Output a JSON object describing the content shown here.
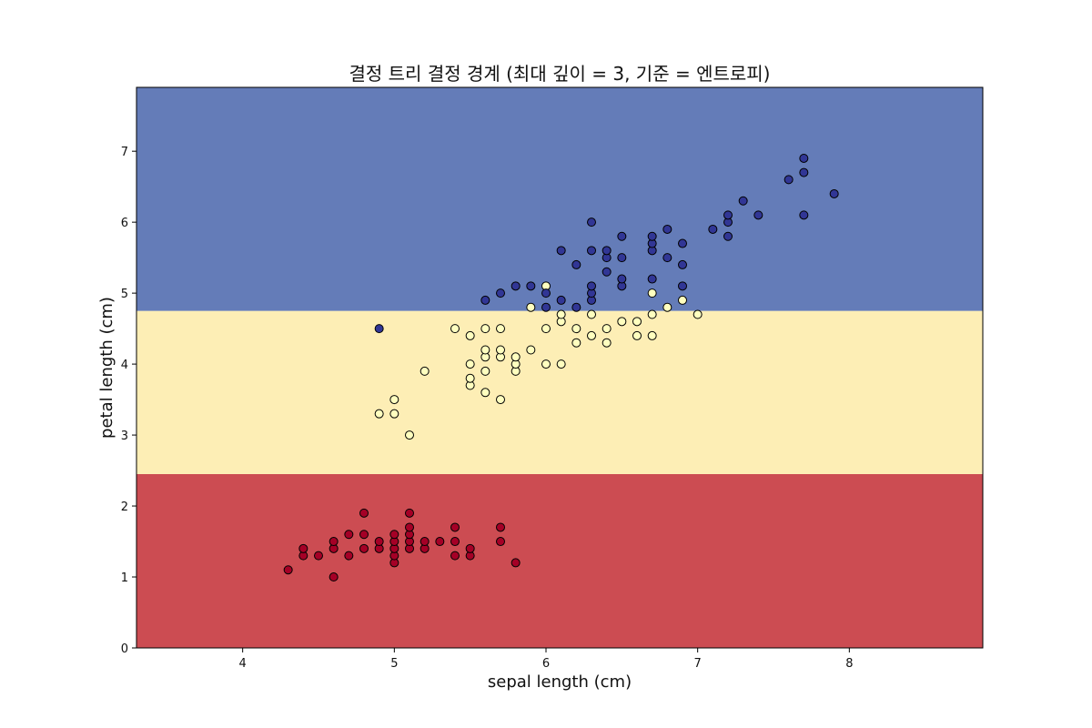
{
  "chart_data": {
    "type": "scatter",
    "title": "결정 트리 결정 경계 (최대 깊이 = 3, 기준 = 엔트로피)",
    "xlabel": "sepal length (cm)",
    "ylabel": "petal length (cm)",
    "xlim": [
      3.3,
      8.88
    ],
    "ylim": [
      0,
      7.9
    ],
    "xticks": [
      "4",
      "5",
      "6",
      "7",
      "8"
    ],
    "yticks": [
      "0",
      "1",
      "2",
      "3",
      "4",
      "5",
      "6",
      "7"
    ],
    "grid": false,
    "regions": [
      {
        "y_from": 0,
        "y_to": 2.45,
        "color": "#cc4c52"
      },
      {
        "y_from": 2.45,
        "y_to": 4.75,
        "color": "#fdeeb5"
      },
      {
        "y_from": 4.75,
        "y_to": 7.9,
        "color": "#647cb8"
      }
    ],
    "point_colors": [
      "#a50026",
      "#ffffbf",
      "#313695"
    ],
    "series": [
      {
        "color": "#a50026",
        "points": [
          [
            4.3,
            1.1
          ],
          [
            4.4,
            1.3
          ],
          [
            4.4,
            1.4
          ],
          [
            4.5,
            1.3
          ],
          [
            4.6,
            1.0
          ],
          [
            4.6,
            1.4
          ],
          [
            4.6,
            1.5
          ],
          [
            4.7,
            1.3
          ],
          [
            4.7,
            1.6
          ],
          [
            4.8,
            1.4
          ],
          [
            4.8,
            1.6
          ],
          [
            4.8,
            1.9
          ],
          [
            4.9,
            1.4
          ],
          [
            4.9,
            1.5
          ],
          [
            5.0,
            1.2
          ],
          [
            5.0,
            1.3
          ],
          [
            5.0,
            1.4
          ],
          [
            5.0,
            1.5
          ],
          [
            5.0,
            1.6
          ],
          [
            5.1,
            1.4
          ],
          [
            5.1,
            1.5
          ],
          [
            5.1,
            1.6
          ],
          [
            5.1,
            1.7
          ],
          [
            5.1,
            1.9
          ],
          [
            5.2,
            1.4
          ],
          [
            5.2,
            1.5
          ],
          [
            5.3,
            1.5
          ],
          [
            5.4,
            1.3
          ],
          [
            5.4,
            1.5
          ],
          [
            5.4,
            1.7
          ],
          [
            5.5,
            1.3
          ],
          [
            5.5,
            1.4
          ],
          [
            5.7,
            1.5
          ],
          [
            5.7,
            1.7
          ],
          [
            5.8,
            1.2
          ]
        ]
      },
      {
        "color": "#ffffbf",
        "points": [
          [
            4.9,
            3.3
          ],
          [
            5.0,
            3.3
          ],
          [
            5.0,
            3.5
          ],
          [
            5.1,
            3.0
          ],
          [
            5.2,
            3.9
          ],
          [
            5.4,
            4.5
          ],
          [
            5.5,
            3.7
          ],
          [
            5.5,
            3.8
          ],
          [
            5.5,
            4.0
          ],
          [
            5.5,
            4.4
          ],
          [
            5.6,
            3.6
          ],
          [
            5.6,
            3.9
          ],
          [
            5.6,
            4.1
          ],
          [
            5.6,
            4.2
          ],
          [
            5.6,
            4.5
          ],
          [
            5.7,
            3.5
          ],
          [
            5.7,
            4.1
          ],
          [
            5.7,
            4.2
          ],
          [
            5.7,
            4.5
          ],
          [
            5.8,
            3.9
          ],
          [
            5.8,
            4.0
          ],
          [
            5.8,
            4.1
          ],
          [
            5.9,
            4.2
          ],
          [
            5.9,
            4.8
          ],
          [
            6.0,
            4.0
          ],
          [
            6.0,
            4.5
          ],
          [
            6.0,
            5.1
          ],
          [
            6.1,
            4.0
          ],
          [
            6.1,
            4.6
          ],
          [
            6.1,
            4.7
          ],
          [
            6.2,
            4.3
          ],
          [
            6.2,
            4.5
          ],
          [
            6.3,
            4.4
          ],
          [
            6.3,
            4.7
          ],
          [
            6.4,
            4.3
          ],
          [
            6.4,
            4.5
          ],
          [
            6.5,
            4.6
          ],
          [
            6.6,
            4.4
          ],
          [
            6.6,
            4.6
          ],
          [
            6.7,
            4.4
          ],
          [
            6.7,
            4.7
          ],
          [
            6.7,
            5.0
          ],
          [
            6.8,
            4.8
          ],
          [
            6.9,
            4.9
          ],
          [
            7.0,
            4.7
          ]
        ]
      },
      {
        "color": "#313695",
        "points": [
          [
            4.9,
            4.5
          ],
          [
            5.6,
            4.9
          ],
          [
            5.7,
            5.0
          ],
          [
            5.8,
            5.1
          ],
          [
            5.9,
            5.1
          ],
          [
            6.0,
            4.8
          ],
          [
            6.0,
            5.0
          ],
          [
            6.1,
            4.9
          ],
          [
            6.1,
            5.6
          ],
          [
            6.2,
            4.8
          ],
          [
            6.2,
            5.4
          ],
          [
            6.3,
            4.9
          ],
          [
            6.3,
            5.0
          ],
          [
            6.3,
            5.1
          ],
          [
            6.3,
            5.6
          ],
          [
            6.3,
            6.0
          ],
          [
            6.4,
            5.3
          ],
          [
            6.4,
            5.5
          ],
          [
            6.4,
            5.6
          ],
          [
            6.5,
            5.1
          ],
          [
            6.5,
            5.2
          ],
          [
            6.5,
            5.5
          ],
          [
            6.5,
            5.8
          ],
          [
            6.7,
            5.2
          ],
          [
            6.7,
            5.6
          ],
          [
            6.7,
            5.7
          ],
          [
            6.7,
            5.8
          ],
          [
            6.8,
            5.5
          ],
          [
            6.8,
            5.9
          ],
          [
            6.9,
            5.1
          ],
          [
            6.9,
            5.4
          ],
          [
            6.9,
            5.7
          ],
          [
            7.1,
            5.9
          ],
          [
            7.2,
            5.8
          ],
          [
            7.2,
            6.0
          ],
          [
            7.2,
            6.1
          ],
          [
            7.3,
            6.3
          ],
          [
            7.4,
            6.1
          ],
          [
            7.6,
            6.6
          ],
          [
            7.7,
            6.1
          ],
          [
            7.7,
            6.7
          ],
          [
            7.7,
            6.9
          ],
          [
            7.9,
            6.4
          ]
        ]
      }
    ]
  }
}
